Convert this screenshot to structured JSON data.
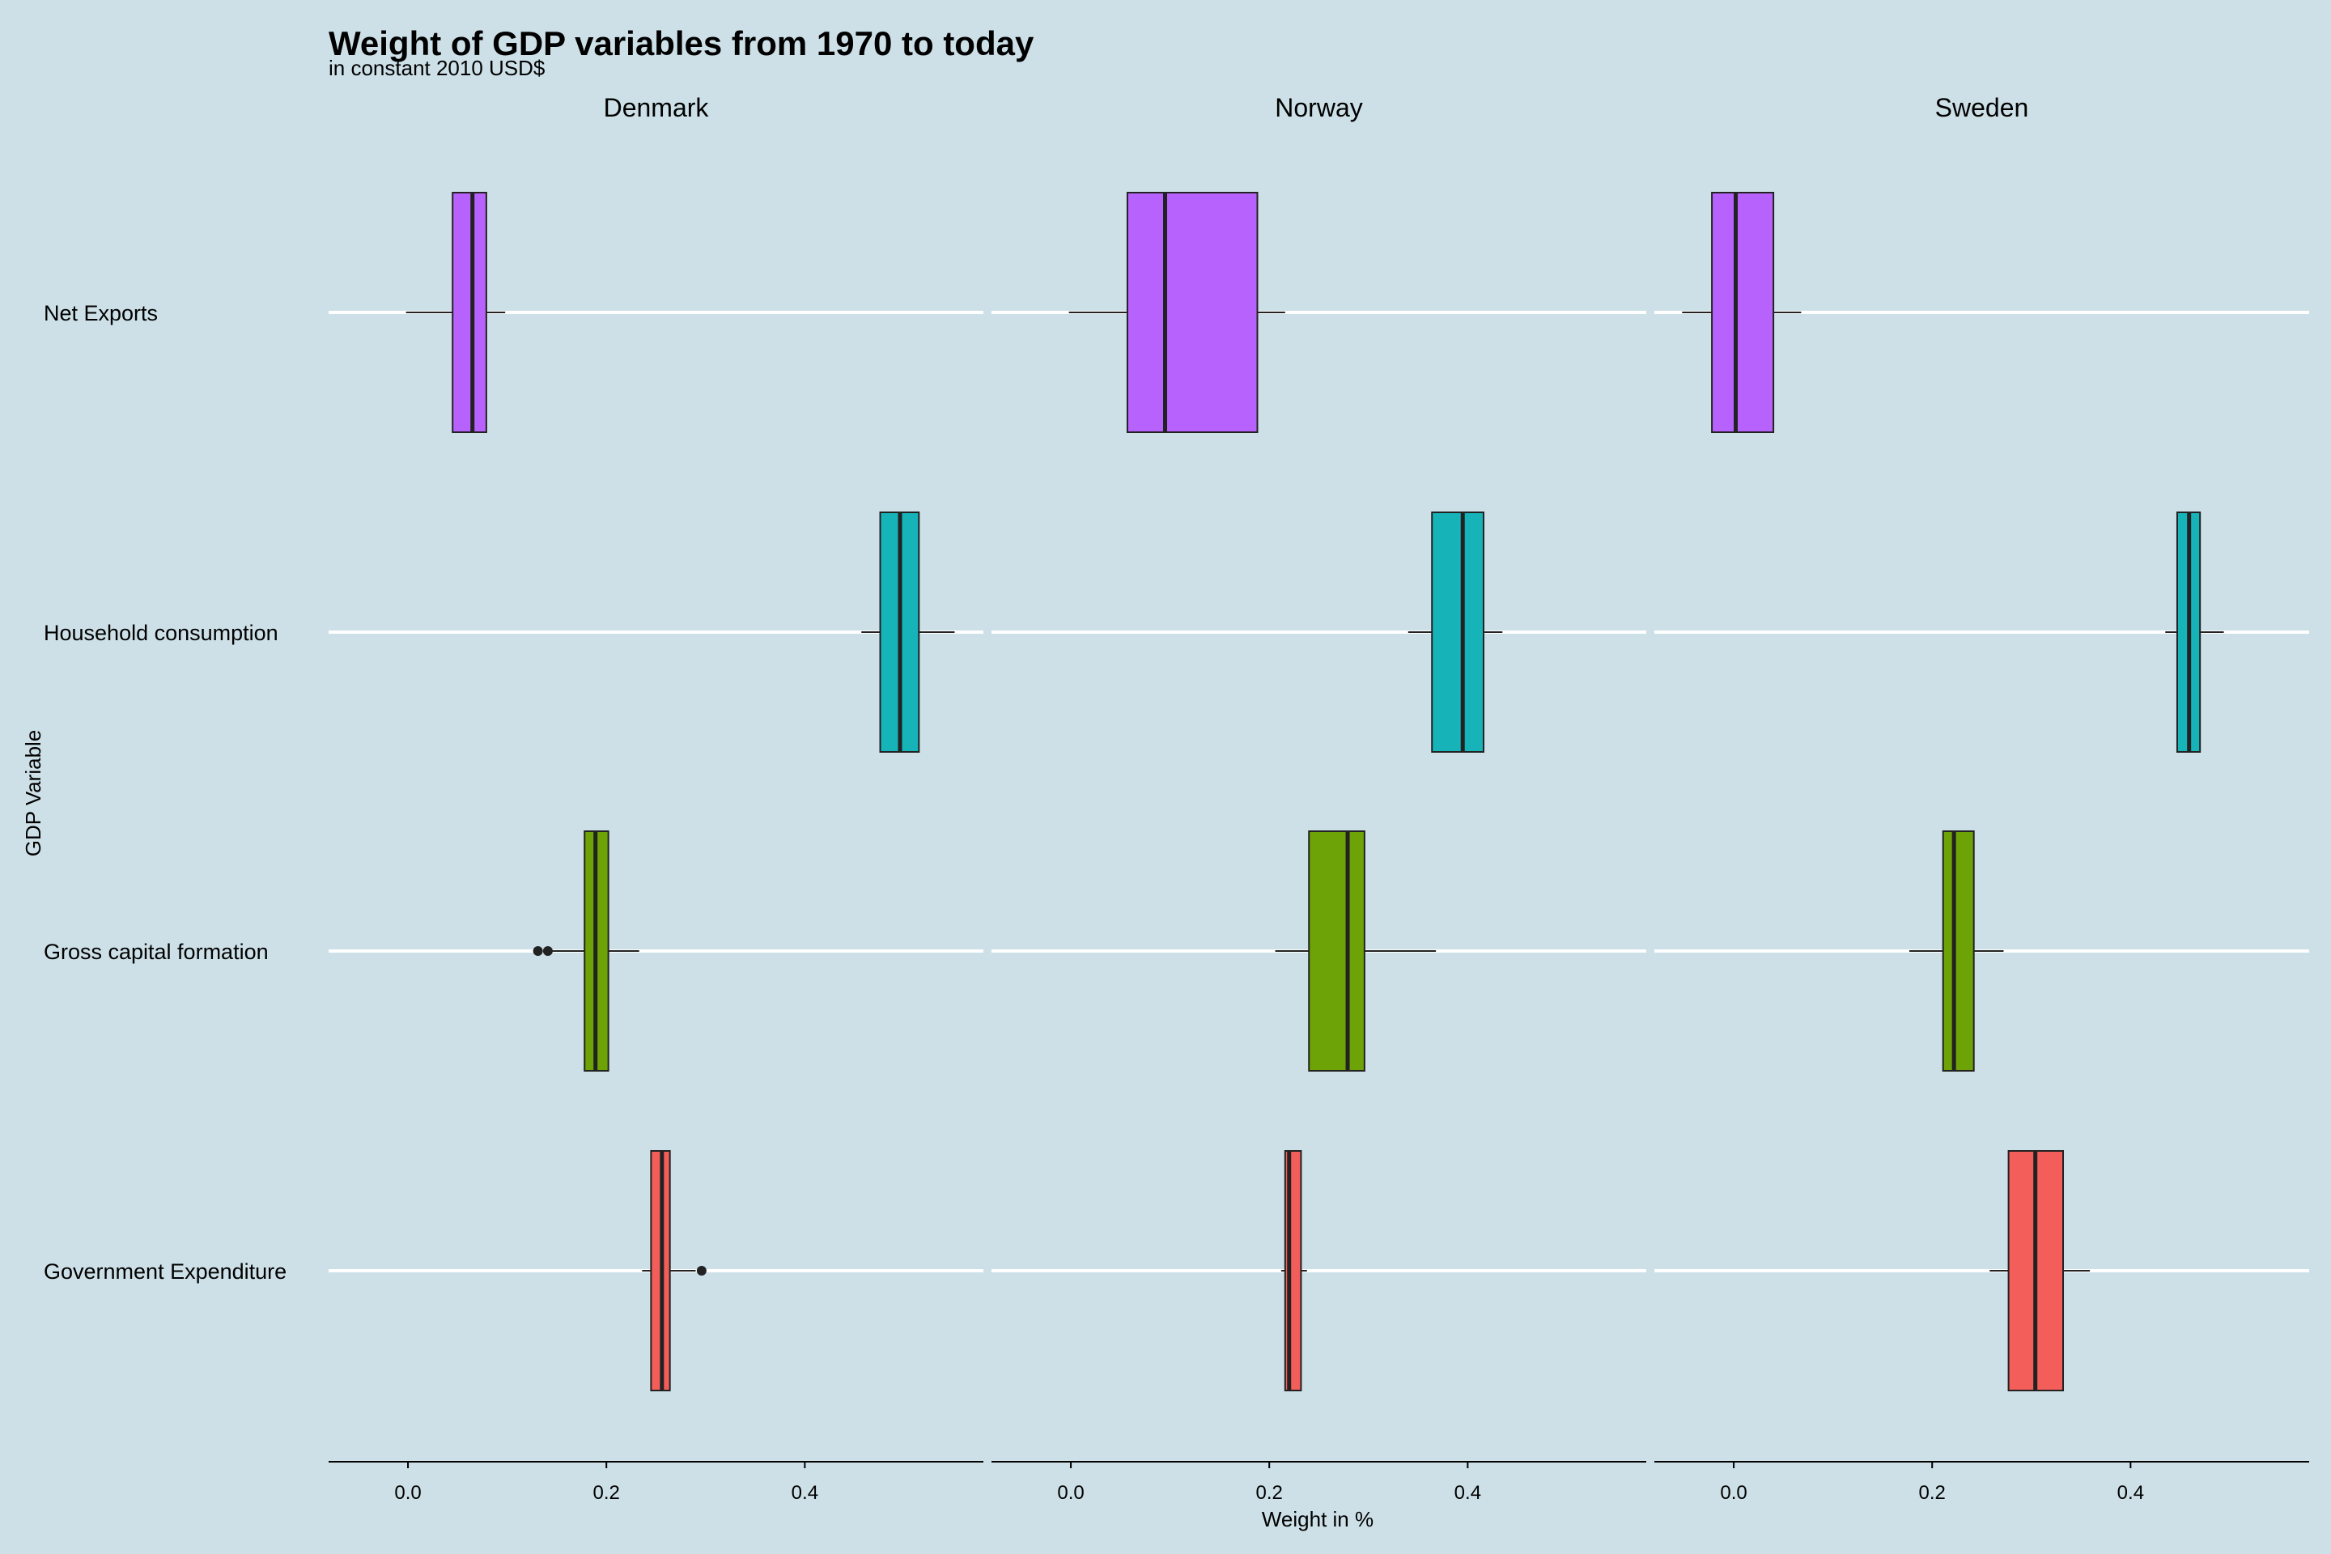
{
  "chart_data": {
    "type": "boxplot",
    "title": "Weight of GDP variables from 1970 to today",
    "subtitle": "in constant 2010 USD$",
    "xlabel": "Weight in %",
    "ylabel": "GDP Variable",
    "xlim": [
      -0.08,
      0.58
    ],
    "x_ticks": [
      0.0,
      0.2,
      0.4
    ],
    "x_tick_labels": [
      "0.0",
      "0.2",
      "0.4"
    ],
    "grid": "horizontal",
    "categories": [
      "Net Exports",
      "Household consumption",
      "Gross capital formation",
      "Government Expenditure"
    ],
    "colors": {
      "Net Exports": "#b862fe",
      "Household consumption": "#16b4b8",
      "Gross capital formation": "#6da307",
      "Government Expenditure": "#f35e5a"
    },
    "panels": [
      {
        "name": "Denmark",
        "boxes": [
          {
            "variable": "Net Exports",
            "whisker_low": -0.002,
            "q1": 0.045,
            "median": 0.065,
            "q3": 0.079,
            "whisker_high": 0.098,
            "outliers": []
          },
          {
            "variable": "Household consumption",
            "whisker_low": 0.457,
            "q1": 0.476,
            "median": 0.496,
            "q3": 0.515,
            "whisker_high": 0.551,
            "outliers": []
          },
          {
            "variable": "Gross capital formation",
            "whisker_low": 0.14,
            "q1": 0.178,
            "median": 0.189,
            "q3": 0.202,
            "whisker_high": 0.233,
            "outliers": [
              0.131,
              0.141
            ]
          },
          {
            "variable": "Government Expenditure",
            "whisker_low": 0.236,
            "q1": 0.245,
            "median": 0.256,
            "q3": 0.264,
            "whisker_high": 0.29,
            "outliers": [
              0.296
            ]
          }
        ]
      },
      {
        "name": "Norway",
        "boxes": [
          {
            "variable": "Net Exports",
            "whisker_low": -0.002,
            "q1": 0.057,
            "median": 0.095,
            "q3": 0.188,
            "whisker_high": 0.216,
            "outliers": []
          },
          {
            "variable": "Household consumption",
            "whisker_low": 0.34,
            "q1": 0.364,
            "median": 0.395,
            "q3": 0.416,
            "whisker_high": 0.435,
            "outliers": []
          },
          {
            "variable": "Gross capital formation",
            "whisker_low": 0.206,
            "q1": 0.24,
            "median": 0.279,
            "q3": 0.296,
            "whisker_high": 0.368,
            "outliers": []
          },
          {
            "variable": "Government Expenditure",
            "whisker_low": 0.212,
            "q1": 0.216,
            "median": 0.22,
            "q3": 0.232,
            "whisker_high": 0.238,
            "outliers": []
          }
        ]
      },
      {
        "name": "Sweden",
        "boxes": [
          {
            "variable": "Net Exports",
            "whisker_low": -0.052,
            "q1": -0.022,
            "median": 0.002,
            "q3": 0.04,
            "whisker_high": 0.068,
            "outliers": []
          },
          {
            "variable": "Household consumption",
            "whisker_low": 0.435,
            "q1": 0.447,
            "median": 0.459,
            "q3": 0.47,
            "whisker_high": 0.494,
            "outliers": []
          },
          {
            "variable": "Gross capital formation",
            "whisker_low": 0.177,
            "q1": 0.211,
            "median": 0.222,
            "q3": 0.242,
            "whisker_high": 0.272,
            "outliers": []
          },
          {
            "variable": "Government Expenditure",
            "whisker_low": 0.258,
            "q1": 0.277,
            "median": 0.304,
            "q3": 0.332,
            "whisker_high": 0.359,
            "outliers": []
          }
        ]
      }
    ]
  }
}
